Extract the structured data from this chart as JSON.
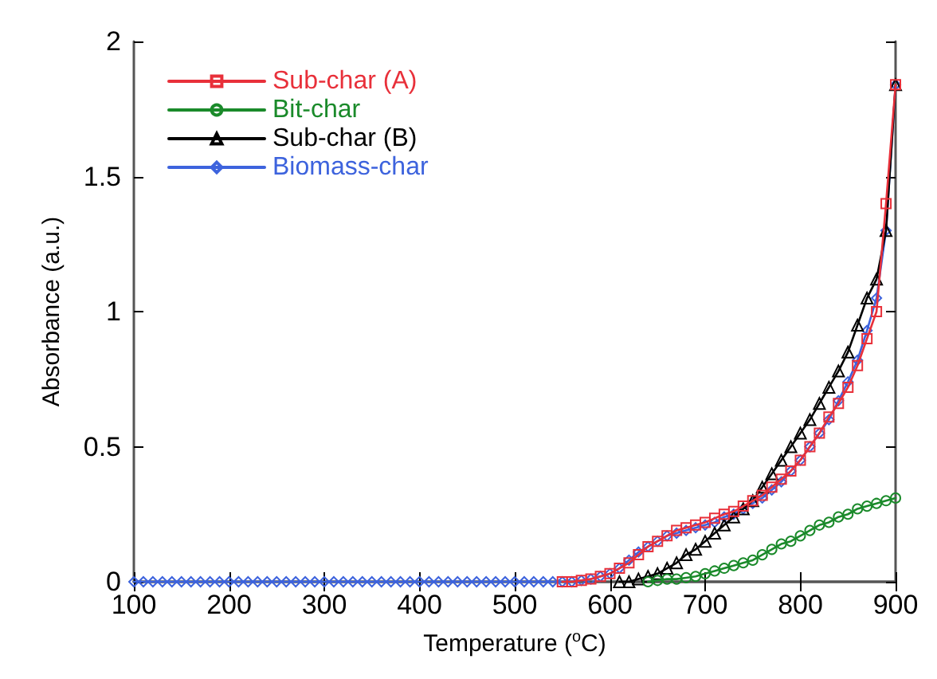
{
  "chart_data": {
    "type": "line",
    "xlabel": "Temperature ($^{o}$C)",
    "ylabel": "Absorbance (a.u.)",
    "xlim": [
      100,
      900
    ],
    "xticks": [
      100,
      200,
      300,
      400,
      500,
      600,
      700,
      800,
      900
    ],
    "ylim": [
      0,
      2
    ],
    "yticks": [
      0,
      0.5,
      1,
      1.5,
      2
    ],
    "grid": false,
    "legend": "top left",
    "x": [
      100,
      110,
      120,
      130,
      140,
      150,
      160,
      170,
      180,
      190,
      200,
      210,
      220,
      230,
      240,
      250,
      260,
      270,
      280,
      290,
      300,
      310,
      320,
      330,
      340,
      350,
      360,
      370,
      380,
      390,
      400,
      410,
      420,
      430,
      440,
      450,
      460,
      470,
      480,
      490,
      500,
      510,
      520,
      530,
      540,
      550,
      560,
      570,
      580,
      590,
      600,
      610,
      620,
      630,
      640,
      650,
      660,
      670,
      680,
      690,
      700,
      710,
      720,
      730,
      740,
      750,
      760,
      770,
      780,
      790,
      800,
      810,
      820,
      830,
      840,
      850,
      860,
      870,
      880,
      890,
      900
    ],
    "series": [
      {
        "name": "Sub-char (A)",
        "color": "#e8303a",
        "marker": "square",
        "values": [
          null,
          null,
          null,
          null,
          null,
          null,
          null,
          null,
          null,
          null,
          null,
          null,
          null,
          null,
          null,
          null,
          null,
          null,
          null,
          null,
          null,
          null,
          null,
          null,
          null,
          null,
          null,
          null,
          null,
          null,
          null,
          null,
          null,
          null,
          null,
          null,
          null,
          null,
          null,
          null,
          null,
          null,
          null,
          null,
          null,
          0,
          0,
          0.005,
          0.01,
          0.02,
          0.03,
          0.05,
          0.07,
          0.1,
          0.13,
          0.15,
          0.17,
          0.19,
          0.2,
          0.21,
          0.22,
          0.235,
          0.25,
          0.26,
          0.28,
          0.3,
          0.32,
          0.35,
          0.38,
          0.41,
          0.45,
          0.5,
          0.55,
          0.61,
          0.66,
          0.72,
          0.8,
          0.9,
          1.0,
          1.4,
          1.84
        ]
      },
      {
        "name": "Bit-char",
        "color": "#1a8a2a",
        "marker": "circle",
        "values": [
          null,
          null,
          null,
          null,
          null,
          null,
          null,
          null,
          null,
          null,
          null,
          null,
          null,
          null,
          null,
          null,
          null,
          null,
          null,
          null,
          null,
          null,
          null,
          null,
          null,
          null,
          null,
          null,
          null,
          null,
          null,
          null,
          null,
          null,
          null,
          null,
          null,
          null,
          null,
          null,
          null,
          null,
          null,
          null,
          null,
          null,
          null,
          null,
          null,
          null,
          null,
          null,
          null,
          null,
          0,
          0.005,
          0.01,
          0.01,
          0.015,
          0.02,
          0.03,
          0.04,
          0.05,
          0.06,
          0.07,
          0.08,
          0.1,
          0.12,
          0.14,
          0.15,
          0.17,
          0.19,
          0.21,
          0.22,
          0.24,
          0.25,
          0.27,
          0.28,
          0.29,
          0.3,
          0.31
        ]
      },
      {
        "name": "Sub-char (B)",
        "color": "#000000",
        "marker": "triangle",
        "values": [
          null,
          null,
          null,
          null,
          null,
          null,
          null,
          null,
          null,
          null,
          null,
          null,
          null,
          null,
          null,
          null,
          null,
          null,
          null,
          null,
          null,
          null,
          null,
          null,
          null,
          null,
          null,
          null,
          null,
          null,
          null,
          null,
          null,
          null,
          null,
          null,
          null,
          null,
          null,
          null,
          null,
          null,
          null,
          null,
          null,
          null,
          null,
          null,
          null,
          null,
          null,
          0,
          0,
          0.01,
          0.02,
          0.03,
          0.05,
          0.07,
          0.1,
          0.12,
          0.15,
          0.18,
          0.21,
          0.24,
          0.27,
          0.3,
          0.35,
          0.4,
          0.45,
          0.5,
          0.55,
          0.6,
          0.66,
          0.72,
          0.78,
          0.85,
          0.95,
          1.05,
          1.12,
          1.3,
          1.84
        ]
      },
      {
        "name": "Biomass-char",
        "color": "#3d63dd",
        "marker": "diamond",
        "values": [
          0,
          0,
          0,
          0,
          0,
          0,
          0,
          0,
          0,
          0,
          0,
          0,
          0,
          0,
          0,
          0,
          0,
          0,
          0,
          0,
          0,
          0,
          0,
          0,
          0,
          0,
          0,
          0,
          0,
          0,
          0,
          0,
          0,
          0,
          0,
          0,
          0,
          0,
          0,
          0,
          0,
          0,
          0,
          0,
          0,
          0,
          0,
          0.005,
          0.01,
          0.02,
          0.03,
          0.05,
          0.08,
          0.11,
          0.13,
          0.15,
          0.17,
          0.18,
          0.19,
          0.2,
          0.21,
          0.22,
          0.24,
          0.25,
          0.27,
          0.29,
          0.31,
          0.34,
          0.37,
          0.41,
          0.45,
          0.5,
          0.55,
          0.6,
          0.67,
          0.74,
          0.82,
          0.93,
          1.05,
          1.3,
          1.84
        ]
      }
    ]
  }
}
